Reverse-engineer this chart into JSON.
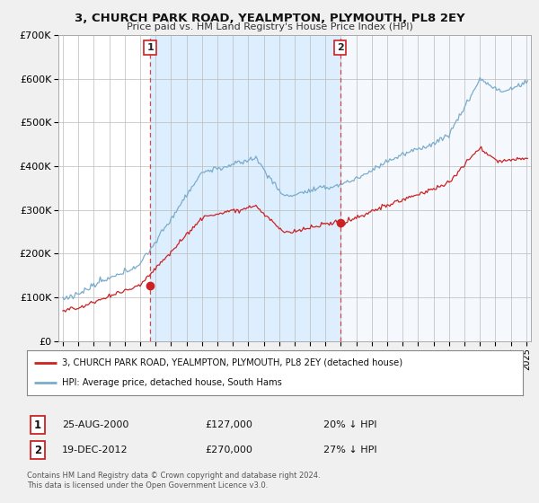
{
  "title": "3, CHURCH PARK ROAD, YEALMPTON, PLYMOUTH, PL8 2EY",
  "subtitle": "Price paid vs. HM Land Registry's House Price Index (HPI)",
  "background_color": "#f0f0f0",
  "plot_bg_color": "#ffffff",
  "sale1_date_label": "25-AUG-2000",
  "sale1_price_label": "£127,000",
  "sale1_hpi_label": "20% ↓ HPI",
  "sale1_year": 2000.65,
  "sale1_price": 127000,
  "sale2_date_label": "19-DEC-2012",
  "sale2_price_label": "£270,000",
  "sale2_hpi_label": "27% ↓ HPI",
  "sale2_year": 2012.96,
  "sale2_price": 270000,
  "legend_line1": "3, CHURCH PARK ROAD, YEALMPTON, PLYMOUTH, PL8 2EY (detached house)",
  "legend_line2": "HPI: Average price, detached house, South Hams",
  "footer": "Contains HM Land Registry data © Crown copyright and database right 2024.\nThis data is licensed under the Open Government Licence v3.0.",
  "red_color": "#cc2222",
  "blue_color": "#7aaccc",
  "shade_color": "#ddeeff",
  "ylim_max": 700000,
  "xlim_start": 1994.7,
  "xlim_end": 2025.3
}
